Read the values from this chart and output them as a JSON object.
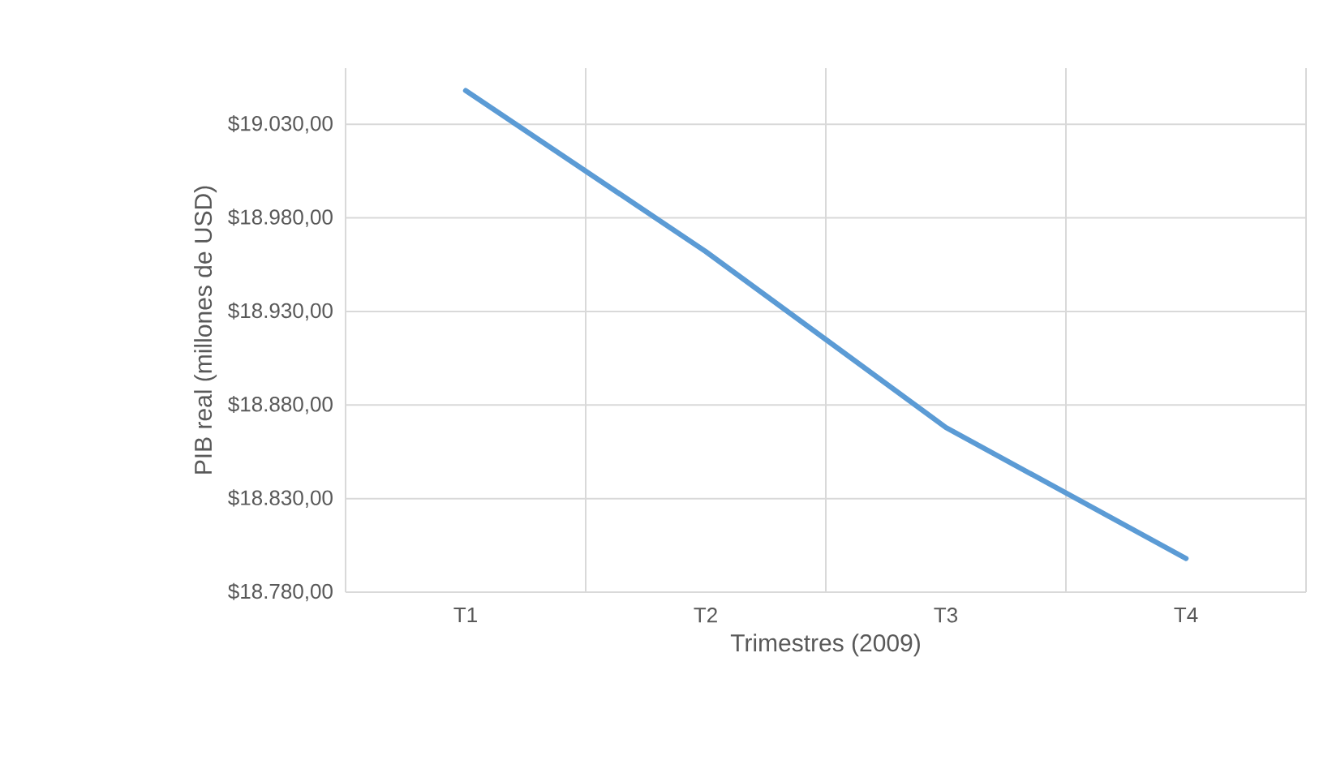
{
  "chart_data": {
    "type": "line",
    "xlabel": "Trimestres (2009)",
    "ylabel": "PIB real (millones de USD)",
    "categories": [
      "T1",
      "T2",
      "T3",
      "T4"
    ],
    "series": [
      {
        "color": "#5b9bd5",
        "values": [
          19048,
          18962,
          18868,
          18798
        ]
      }
    ],
    "ylim": [
      18780,
      19060
    ],
    "yticks": [
      {
        "value": 18780,
        "label": "$18.780,00"
      },
      {
        "value": 18830,
        "label": "$18.830,00"
      },
      {
        "value": 18880,
        "label": "$18.880,00"
      },
      {
        "value": 18930,
        "label": "$18.930,00"
      },
      {
        "value": 18980,
        "label": "$18.980,00"
      },
      {
        "value": 19030,
        "label": "$19.030,00"
      }
    ],
    "grid": true,
    "marker": "none",
    "line_style": "solid"
  }
}
